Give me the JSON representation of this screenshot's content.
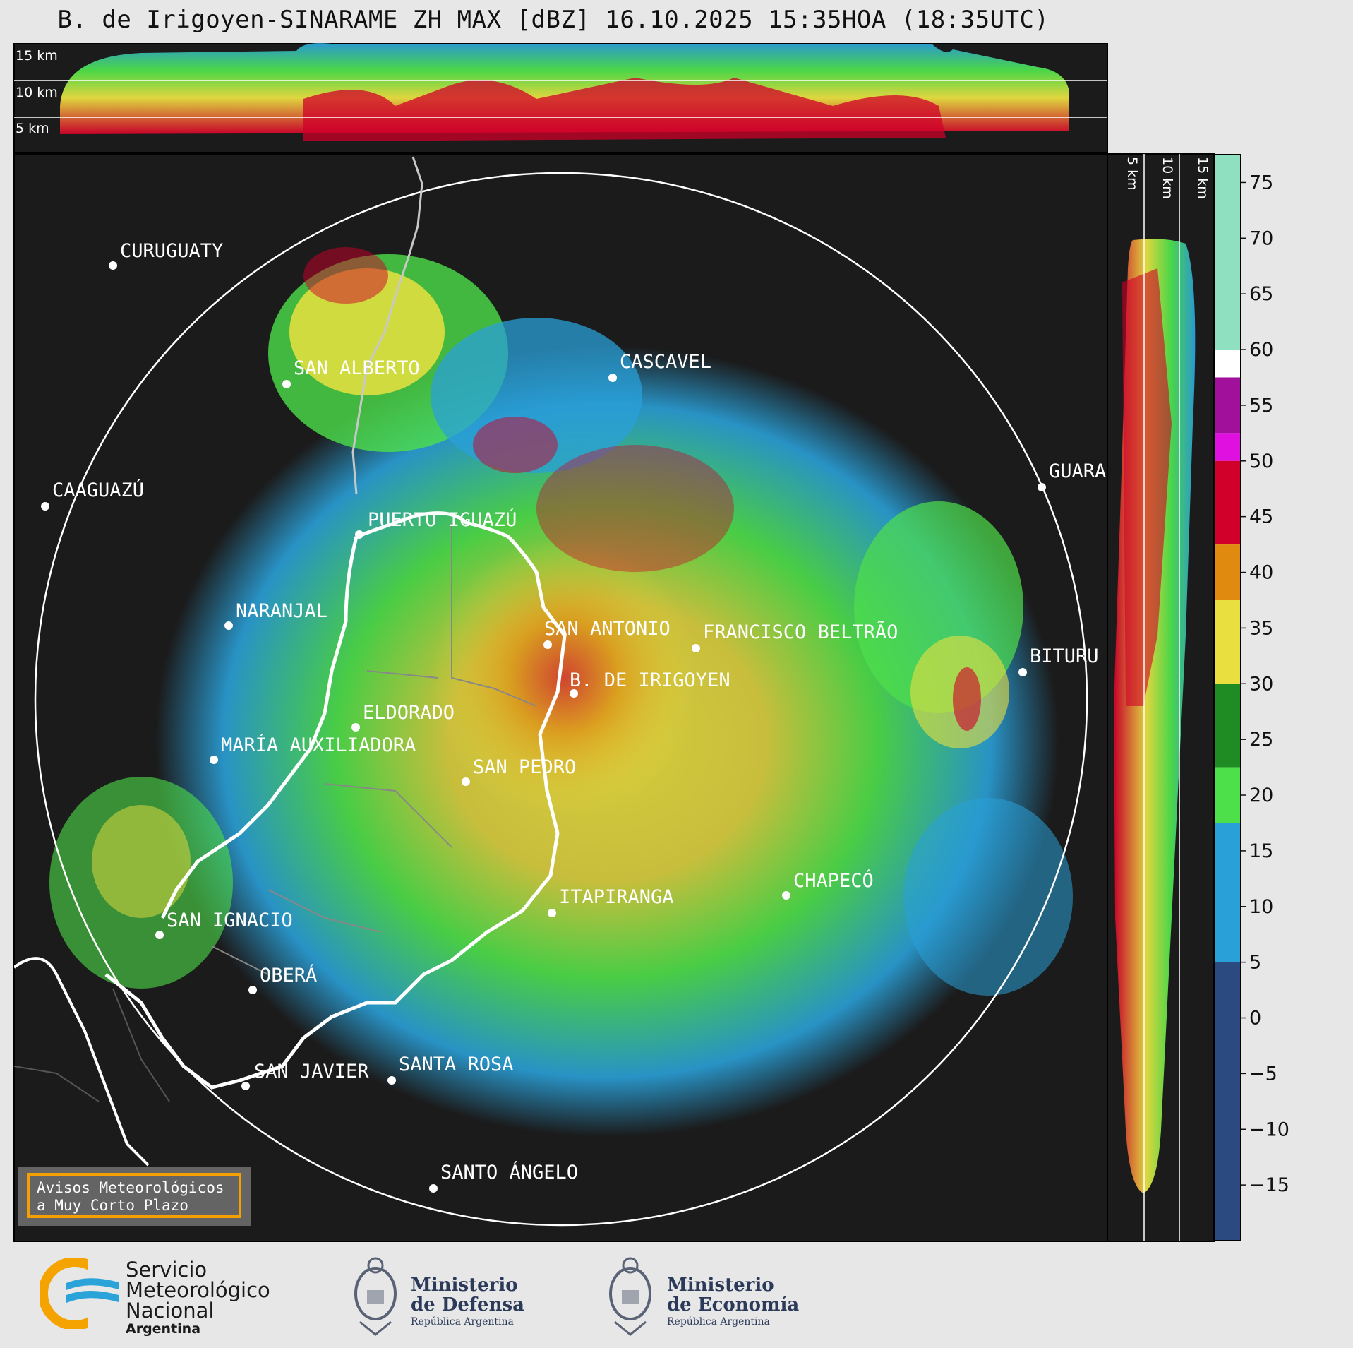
{
  "title": "B. de Irigoyen-SINARAME ZH MAX [dBZ] 16.10.2025 15:35HOA (18:35UTC)",
  "top_profile_labels": [
    "15 km",
    "10 km",
    "5 km"
  ],
  "side_profile_labels": [
    "5 km",
    "10 km",
    "15 km"
  ],
  "cities": [
    {
      "name": "CURUGUATY"
    },
    {
      "name": "SAN ALBERTO"
    },
    {
      "name": "CASCAVEL"
    },
    {
      "name": "CAAGUAZÚ"
    },
    {
      "name": "GUARA"
    },
    {
      "name": "PUERTO IGUAZÚ"
    },
    {
      "name": "NARANJAL"
    },
    {
      "name": "SAN ANTONIO"
    },
    {
      "name": "FRANCISCO BELTRÃO"
    },
    {
      "name": "BITURU"
    },
    {
      "name": "B. DE IRIGOYEN"
    },
    {
      "name": "ELDORADO"
    },
    {
      "name": "MARÍA AUXILIADORA"
    },
    {
      "name": "SAN PEDRO"
    },
    {
      "name": "ITAPIRANGA"
    },
    {
      "name": "CHAPECÓ"
    },
    {
      "name": "SAN IGNACIO"
    },
    {
      "name": "OBERÁ"
    },
    {
      "name": "SAN JAVIER"
    },
    {
      "name": "SANTA ROSA"
    },
    {
      "name": "SANTO ÁNGELO"
    }
  ],
  "colorbar": {
    "ticks": [
      "75",
      "70",
      "65",
      "60",
      "55",
      "50",
      "45",
      "40",
      "35",
      "30",
      "25",
      "20",
      "15",
      "10",
      "5",
      "0",
      "−5",
      "−10",
      "−15"
    ],
    "colors": {
      "high": "#8fe0c0",
      "white": "#ffffff",
      "purple": "#a0109a",
      "magenta": "#e010e0",
      "red": "#d0002a",
      "orange": "#e08a10",
      "yellow": "#e9e040",
      "green": "#1e8c22",
      "lightgreen": "#4ee04a",
      "blue": "#2aa0d8",
      "darkblue": "#2a4a80"
    }
  },
  "aviso": {
    "line1": "Avisos Meteorológicos",
    "line2": "a Muy Corto Plazo"
  },
  "logos": {
    "smn": {
      "line1": "Servicio",
      "line2": "Meteorológico",
      "line3": "Nacional",
      "line4": "Argentina"
    },
    "defensa": {
      "line1": "Ministerio",
      "line2": "de Defensa",
      "line3": "República Argentina"
    },
    "economia": {
      "line1": "Ministerio",
      "line2": "de Economía",
      "line3": "República Argentina"
    }
  }
}
